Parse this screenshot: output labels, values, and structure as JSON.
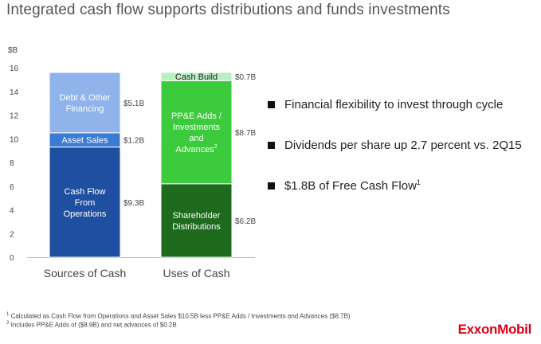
{
  "slide": {
    "title": "Integrated cash flow supports distributions and funds investments"
  },
  "chart_data": {
    "type": "bar",
    "stacked": true,
    "ylabel": "$B",
    "ylim": [
      0,
      16
    ],
    "yticks": [
      0,
      2,
      4,
      6,
      8,
      10,
      12,
      14,
      16
    ],
    "categories": [
      "Sources of Cash",
      "Uses of Cash"
    ],
    "stacks": [
      {
        "category": "Sources of Cash",
        "segments": [
          {
            "label": [
              "Cash Flow",
              "From",
              "Operations"
            ],
            "value": 9.3,
            "value_label": "$9.3B",
            "color": "#1f4fa0"
          },
          {
            "label": [
              "Asset Sales"
            ],
            "value": 1.2,
            "value_label": "$1.2B",
            "color": "#3a7bd5"
          },
          {
            "label": [
              "Debt & Other",
              "Financing"
            ],
            "value": 5.1,
            "value_label": "$5.1B",
            "color": "#8fb3ea"
          }
        ]
      },
      {
        "category": "Uses of Cash",
        "segments": [
          {
            "label": [
              "Shareholder",
              "Distributions"
            ],
            "value": 6.2,
            "value_label": "$6.2B",
            "color": "#1e6b1e"
          },
          {
            "label": [
              "PP&E Adds /",
              "Investments",
              "and",
              "Advances"
            ],
            "label_sup": "2",
            "value": 8.7,
            "value_label": "$8.7B",
            "color": "#3ccb3c"
          },
          {
            "label": [
              "Cash Build"
            ],
            "value": 0.7,
            "value_label": "$0.7B",
            "color": "#b9f0c3"
          }
        ]
      }
    ]
  },
  "bullets": [
    {
      "text": "Financial flexibility to invest through cycle",
      "sup": ""
    },
    {
      "text": "Dividends per share up 2.7 percent vs. 2Q15",
      "sup": ""
    },
    {
      "text": "$1.8B of Free Cash Flow",
      "sup": "1"
    }
  ],
  "footnotes": [
    {
      "sup": "1",
      "text": "Calculated as Cash Flow from Operations and Asset Sales $10.5B less PP&E Adds / Investments and Advances ($8.7B)"
    },
    {
      "sup": "2",
      "text": "Includes PP&E Adds of ($8.9B) and net advances of $0.2B"
    }
  ],
  "logo": {
    "text": "ExxonMobil",
    "color": "#e2001a"
  }
}
